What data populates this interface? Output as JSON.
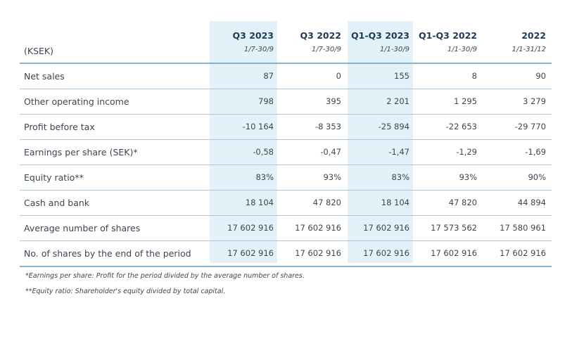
{
  "table": {
    "unit_label": "(KSEK)",
    "columns": [
      {
        "period": "Q3 2023",
        "dates": "1/7-30/9"
      },
      {
        "period": "Q3 2022",
        "dates": "1/7-30/9"
      },
      {
        "period": "Q1-Q3 2023",
        "dates": "1/1-30/9"
      },
      {
        "period": "Q1-Q3  2022",
        "dates": "1/1-30/9"
      },
      {
        "period": "2022",
        "dates": "1/1-31/12"
      }
    ],
    "rows": [
      {
        "label": "Net sales",
        "values": [
          "87",
          "0",
          "155",
          "8",
          "90"
        ]
      },
      {
        "label": "Other operating income",
        "values": [
          "798",
          "395",
          "2 201",
          "1 295",
          "3 279"
        ]
      },
      {
        "label": "Profit before tax",
        "values": [
          "-10 164",
          "-8 353",
          "-25 894",
          "-22 653",
          "-29 770"
        ]
      },
      {
        "label": "Earnings per share (SEK)*",
        "values": [
          "-0,58",
          "-0,47",
          "-1,47",
          "-1,29",
          "-1,69"
        ]
      },
      {
        "label": "Equity ratio**",
        "values": [
          "83%",
          "93%",
          "83%",
          "93%",
          "90%"
        ]
      },
      {
        "label": "Cash and bank",
        "values": [
          "18 104",
          "47 820",
          "18 104",
          "47 820",
          "44 894"
        ]
      },
      {
        "label": "Average number of shares",
        "values": [
          "17 602 916",
          "17 602 916",
          "17 602 916",
          "17 573 562",
          "17 580 961"
        ]
      },
      {
        "label": "No. of shares by the end of the period",
        "values": [
          "17 602 916",
          "17 602 916",
          "17 602 916",
          "17 602 916",
          "17 602 916"
        ]
      }
    ],
    "highlight_color": "#e3f1f9",
    "rule_color": "#a9c8de"
  },
  "footnotes": [
    "*Earnings per share: Profit for the period divided by the average number of shares.",
    "**Equity ratio: Shareholder's equity divided by total capital."
  ]
}
